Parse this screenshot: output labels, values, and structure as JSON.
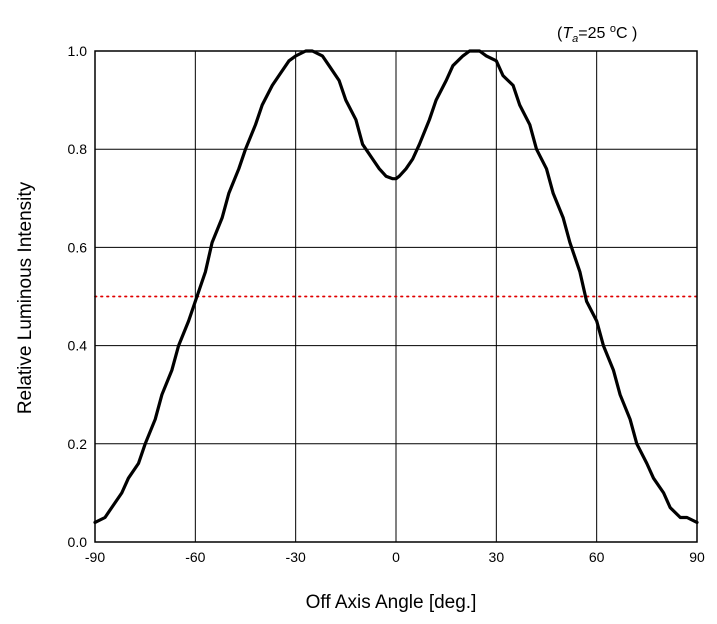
{
  "chart_data": {
    "type": "line",
    "title": "",
    "xlabel": "Off Axis Angle [deg.]",
    "ylabel": "Relative Luminous Intensity",
    "condition": {
      "open": "(",
      "symbol": "T",
      "subscript": "a",
      "equals_value": "=25 ",
      "unit_sup": "o",
      "unit": "C",
      "close": " )"
    },
    "xlim": [
      -90,
      90
    ],
    "ylim": [
      0,
      1.0
    ],
    "xticks": [
      "-90",
      "-60",
      "-30",
      "0",
      "30",
      "60",
      "90"
    ],
    "xtick_values": [
      -90,
      -60,
      -30,
      0,
      30,
      60,
      90
    ],
    "yticks": [
      "0.0",
      "0.2",
      "0.4",
      "0.6",
      "0.8",
      "1.0"
    ],
    "ytick_values": [
      0,
      0.2,
      0.4,
      0.6,
      0.8,
      1.0
    ],
    "grid": true,
    "series": [
      {
        "style": "solid",
        "color": "#000000",
        "x": [
          -90,
          -87,
          -85,
          -82,
          -80,
          -77,
          -75,
          -72,
          -70,
          -67,
          -65,
          -62,
          -60,
          -57,
          -55,
          -52,
          -50,
          -47,
          -45,
          -42,
          -40,
          -37,
          -35,
          -32,
          -30,
          -27,
          -25,
          -22,
          -20,
          -17,
          -15,
          -12,
          -10,
          -7,
          -5,
          -3,
          -1,
          0,
          1,
          3,
          5,
          7,
          10,
          12,
          15,
          17,
          20,
          22,
          25,
          27,
          30,
          32,
          35,
          37,
          40,
          42,
          45,
          47,
          50,
          52,
          55,
          57,
          60,
          62,
          65,
          67,
          70,
          72,
          75,
          77,
          80,
          82,
          85,
          87,
          90
        ],
        "y": [
          0.04,
          0.05,
          0.07,
          0.1,
          0.13,
          0.16,
          0.2,
          0.25,
          0.3,
          0.35,
          0.4,
          0.45,
          0.49,
          0.55,
          0.61,
          0.66,
          0.71,
          0.76,
          0.8,
          0.85,
          0.89,
          0.93,
          0.95,
          0.98,
          0.99,
          1.0,
          1.0,
          0.99,
          0.97,
          0.94,
          0.9,
          0.86,
          0.81,
          0.78,
          0.76,
          0.745,
          0.74,
          0.74,
          0.745,
          0.76,
          0.78,
          0.81,
          0.86,
          0.9,
          0.94,
          0.97,
          0.99,
          1.0,
          1.0,
          0.99,
          0.98,
          0.95,
          0.93,
          0.89,
          0.85,
          0.8,
          0.76,
          0.71,
          0.66,
          0.61,
          0.55,
          0.49,
          0.45,
          0.4,
          0.35,
          0.3,
          0.25,
          0.2,
          0.16,
          0.13,
          0.1,
          0.07,
          0.05,
          0.05,
          0.04
        ]
      },
      {
        "style": "dotted",
        "color": "#e00000",
        "x": [
          -90,
          90
        ],
        "y": [
          0.5,
          0.5
        ]
      }
    ]
  }
}
